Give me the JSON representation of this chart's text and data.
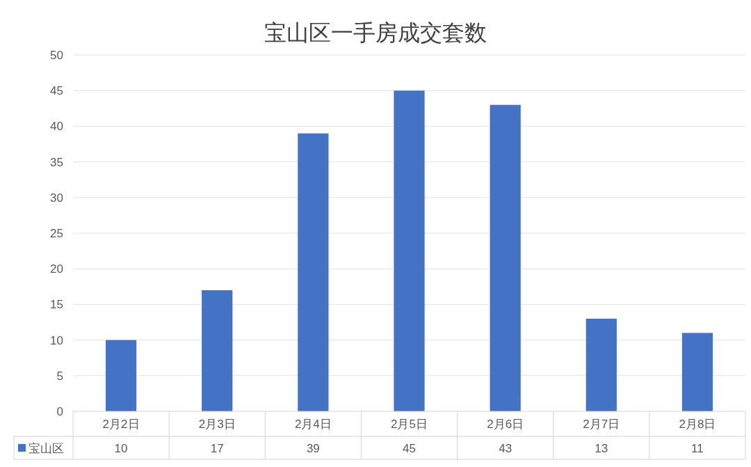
{
  "chart_data": {
    "type": "bar",
    "title": "宝山区一手房成交套数",
    "categories": [
      "2月2日",
      "2月3日",
      "2月4日",
      "2月5日",
      "2月6日",
      "2月7日",
      "2月8日"
    ],
    "series": [
      {
        "name": "宝山区",
        "color": "#4472c4",
        "values": [
          10,
          17,
          39,
          45,
          43,
          13,
          11
        ]
      }
    ],
    "ylim": [
      0,
      50
    ],
    "yticks": [
      0,
      5,
      10,
      15,
      20,
      25,
      30,
      35,
      40,
      45,
      50
    ],
    "grid": "y",
    "legend": "bottom",
    "data_labels": true
  }
}
